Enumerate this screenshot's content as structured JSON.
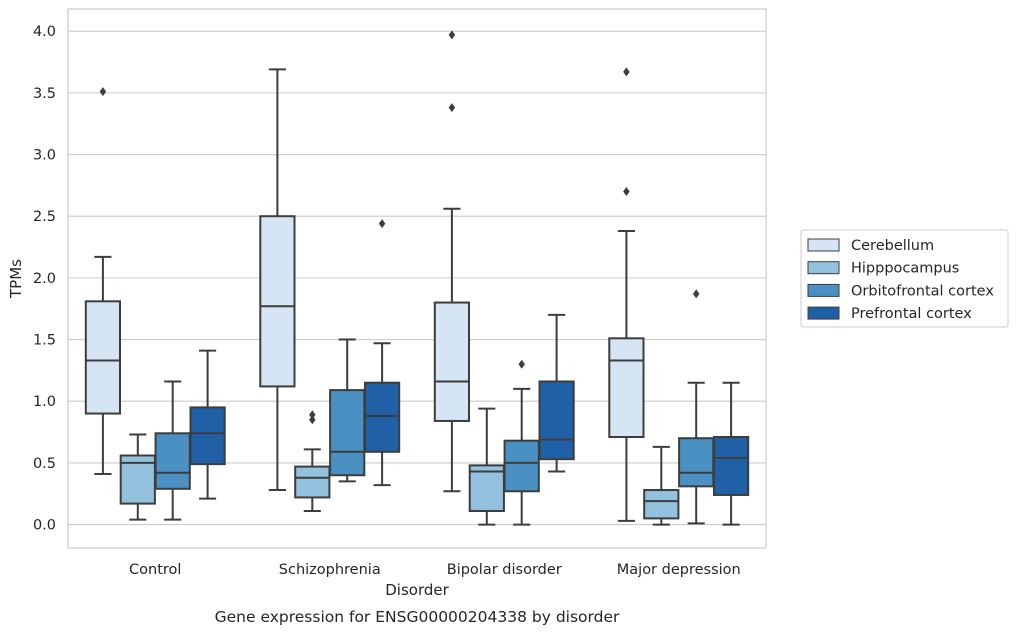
{
  "chart_data": {
    "type": "box",
    "title": "",
    "caption": "Gene expression for ENSG00000204338 by disorder",
    "xlabel": "Disorder",
    "ylabel": "TPMs",
    "ylim": [
      -0.19,
      4.18
    ],
    "yticks": [
      0.0,
      0.5,
      1.0,
      1.5,
      2.0,
      2.5,
      3.0,
      3.5,
      4.0
    ],
    "ytick_labels": [
      "0.0",
      "0.5",
      "1.0",
      "1.5",
      "2.0",
      "2.5",
      "3.0",
      "3.5",
      "4.0"
    ],
    "grid": "horizontal",
    "legend_position": "outside-right",
    "categories": [
      "Control",
      "Schizophrenia",
      "Bipolar disorder",
      "Major depression"
    ],
    "series": [
      {
        "name": "Cerebellum",
        "color": "#d6e5f3",
        "boxes": [
          {
            "whislo": 0.41,
            "q1": 0.9,
            "med": 1.33,
            "q3": 1.81,
            "whishi": 2.17,
            "fliers": [
              3.51
            ]
          },
          {
            "whislo": 0.28,
            "q1": 1.12,
            "med": 1.77,
            "q3": 2.5,
            "whishi": 3.69,
            "fliers": []
          },
          {
            "whislo": 0.27,
            "q1": 0.84,
            "med": 1.16,
            "q3": 1.8,
            "whishi": 2.56,
            "fliers": [
              3.97,
              3.38
            ]
          },
          {
            "whislo": 0.03,
            "q1": 0.71,
            "med": 1.33,
            "q3": 1.51,
            "whishi": 2.38,
            "fliers": [
              3.67,
              2.7
            ]
          }
        ]
      },
      {
        "name": "Hipppocampus",
        "color": "#94c1de",
        "boxes": [
          {
            "whislo": 0.04,
            "q1": 0.17,
            "med": 0.5,
            "q3": 0.56,
            "whishi": 0.73,
            "fliers": []
          },
          {
            "whislo": 0.11,
            "q1": 0.22,
            "med": 0.38,
            "q3": 0.47,
            "whishi": 0.61,
            "fliers": [
              0.89,
              0.85
            ]
          },
          {
            "whislo": 0.0,
            "q1": 0.11,
            "med": 0.43,
            "q3": 0.48,
            "whishi": 0.94,
            "fliers": []
          },
          {
            "whislo": 0.0,
            "q1": 0.05,
            "med": 0.19,
            "q3": 0.28,
            "whishi": 0.63,
            "fliers": []
          }
        ]
      },
      {
        "name": "Orbitofrontal cortex",
        "color": "#4a90c2",
        "boxes": [
          {
            "whislo": 0.04,
            "q1": 0.29,
            "med": 0.42,
            "q3": 0.74,
            "whishi": 1.16,
            "fliers": []
          },
          {
            "whislo": 0.35,
            "q1": 0.4,
            "med": 0.59,
            "q3": 1.09,
            "whishi": 1.5,
            "fliers": []
          },
          {
            "whislo": 0.0,
            "q1": 0.27,
            "med": 0.5,
            "q3": 0.68,
            "whishi": 1.1,
            "fliers": [
              1.3
            ]
          },
          {
            "whislo": 0.01,
            "q1": 0.31,
            "med": 0.42,
            "q3": 0.7,
            "whishi": 1.15,
            "fliers": [
              1.87
            ]
          }
        ]
      },
      {
        "name": "Prefrontal cortex",
        "color": "#2060a7",
        "boxes": [
          {
            "whislo": 0.21,
            "q1": 0.49,
            "med": 0.74,
            "q3": 0.95,
            "whishi": 1.41,
            "fliers": []
          },
          {
            "whislo": 0.32,
            "q1": 0.59,
            "med": 0.88,
            "q3": 1.15,
            "whishi": 1.47,
            "fliers": [
              2.44
            ]
          },
          {
            "whislo": 0.43,
            "q1": 0.53,
            "med": 0.69,
            "q3": 1.16,
            "whishi": 1.7,
            "fliers": []
          },
          {
            "whislo": 0.0,
            "q1": 0.24,
            "med": 0.54,
            "q3": 0.71,
            "whishi": 1.15,
            "fliers": []
          }
        ]
      }
    ]
  }
}
